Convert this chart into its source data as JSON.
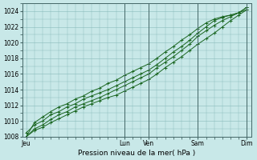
{
  "title": "",
  "xlabel": "Pression niveau de la mer( hPa )",
  "ylabel": "",
  "ylim": [
    1008,
    1025
  ],
  "yticks": [
    1008,
    1010,
    1012,
    1014,
    1016,
    1018,
    1020,
    1022,
    1024
  ],
  "bg_color": "#c8e8e8",
  "grid_color": "#88bbbb",
  "line_color": "#1a6620",
  "xtick_labels": [
    "Jeu",
    "Lun",
    "Ven",
    "Sam",
    "Dim"
  ],
  "xtick_positions": [
    0,
    12,
    15,
    21,
    27
  ],
  "total_points": 28,
  "lines": [
    [
      1008.0,
      1008.8,
      1009.2,
      1009.8,
      1010.3,
      1010.8,
      1011.3,
      1011.8,
      1012.2,
      1012.6,
      1013.0,
      1013.3,
      1013.8,
      1014.3,
      1014.8,
      1015.3,
      1016.0,
      1016.8,
      1017.5,
      1018.2,
      1019.0,
      1019.8,
      1020.5,
      1021.2,
      1022.0,
      1022.8,
      1023.5,
      1024.2
    ],
    [
      1008.0,
      1009.0,
      1009.5,
      1010.2,
      1010.8,
      1011.2,
      1011.8,
      1012.2,
      1012.6,
      1013.0,
      1013.5,
      1014.0,
      1014.5,
      1015.0,
      1015.5,
      1016.0,
      1016.8,
      1017.5,
      1018.2,
      1019.0,
      1019.8,
      1020.8,
      1021.5,
      1022.2,
      1022.8,
      1023.3,
      1023.8,
      1024.5
    ],
    [
      1008.5,
      1009.5,
      1010.0,
      1010.8,
      1011.2,
      1011.8,
      1012.2,
      1012.8,
      1013.2,
      1013.6,
      1014.0,
      1014.5,
      1015.0,
      1015.5,
      1016.0,
      1016.5,
      1017.2,
      1018.0,
      1018.8,
      1019.5,
      1020.3,
      1021.2,
      1022.0,
      1022.8,
      1023.2,
      1023.5,
      1023.8,
      1024.5
    ],
    [
      1008.0,
      1009.8,
      1010.5,
      1011.2,
      1011.8,
      1012.2,
      1012.8,
      1013.2,
      1013.8,
      1014.2,
      1014.8,
      1015.2,
      1015.8,
      1016.3,
      1016.8,
      1017.3,
      1018.0,
      1018.8,
      1019.5,
      1020.3,
      1021.0,
      1021.8,
      1022.5,
      1023.0,
      1023.3,
      1023.5,
      1023.8,
      1024.2
    ]
  ],
  "vlines": [
    12,
    15,
    21,
    27
  ]
}
